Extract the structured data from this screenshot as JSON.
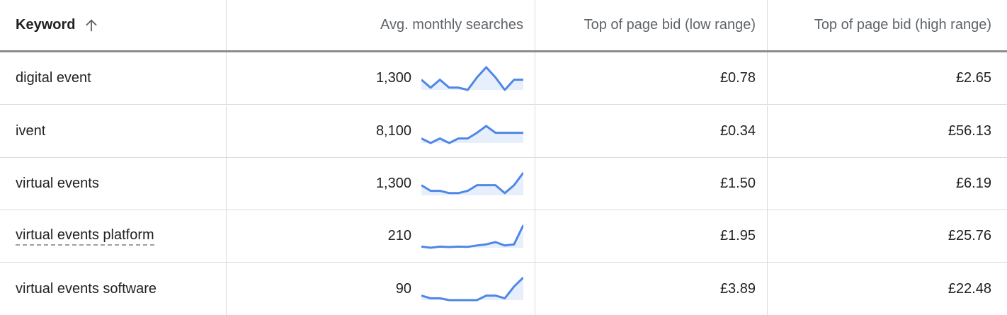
{
  "colors": {
    "sparkline": "#4f87e6",
    "sparkline_fill": "#e8effc"
  },
  "header": {
    "keyword": "Keyword",
    "avg_monthly_searches": "Avg. monthly searches",
    "bid_low": "Top of page bid (low range)",
    "bid_high": "Top of page bid (high range)",
    "sort_icon": "arrow-up-icon"
  },
  "rows": [
    {
      "keyword": "digital event",
      "searches": "1,300",
      "bid_low": "£0.78",
      "bid_high": "£2.65",
      "trend": [
        0.45,
        0.1,
        0.45,
        0.1,
        0.1,
        0.0,
        0.55,
        1.0,
        0.55,
        0.0,
        0.45,
        0.45
      ]
    },
    {
      "keyword": "ivent",
      "searches": "8,100",
      "bid_low": "£0.34",
      "bid_high": "£56.13",
      "trend": [
        0.2,
        0.0,
        0.2,
        0.0,
        0.2,
        0.2,
        0.45,
        0.75,
        0.45,
        0.45,
        0.45,
        0.45
      ]
    },
    {
      "keyword": "virtual events",
      "searches": "1,300",
      "bid_low": "£1.50",
      "bid_high": "£6.19",
      "trend": [
        0.45,
        0.2,
        0.2,
        0.1,
        0.1,
        0.2,
        0.45,
        0.45,
        0.45,
        0.1,
        0.45,
        1.0
      ]
    },
    {
      "keyword": "virtual events platform",
      "searches": "210",
      "bid_low": "£1.95",
      "bid_high": "£25.76",
      "trend": [
        0.05,
        0.0,
        0.05,
        0.03,
        0.05,
        0.04,
        0.1,
        0.15,
        0.25,
        0.1,
        0.15,
        1.0
      ]
    },
    {
      "keyword": "virtual events software",
      "searches": "90",
      "bid_low": "£3.89",
      "bid_high": "£22.48",
      "trend": [
        0.2,
        0.08,
        0.08,
        0.0,
        0.0,
        0.0,
        0.0,
        0.2,
        0.2,
        0.08,
        0.6,
        1.0
      ]
    }
  ]
}
